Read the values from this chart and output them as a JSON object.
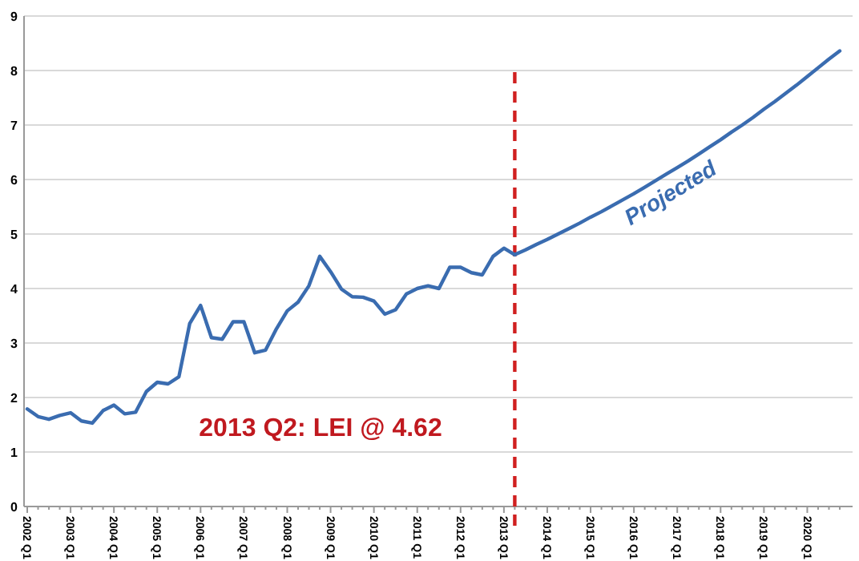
{
  "chart_data": {
    "type": "line",
    "annotations": [
      "2013 Q2: LEI @ 4.62"
    ],
    "categories": [
      "2002 Q1",
      null,
      null,
      null,
      "2003 Q1",
      null,
      null,
      null,
      "2004 Q1",
      null,
      null,
      null,
      "2005 Q1",
      null,
      null,
      null,
      "2006 Q1",
      null,
      null,
      null,
      "2007 Q1",
      null,
      null,
      null,
      "2008 Q1",
      null,
      null,
      null,
      "2009 Q1",
      null,
      null,
      null,
      "2010 Q1",
      null,
      null,
      null,
      "2011 Q1",
      null,
      null,
      null,
      "2012 Q1",
      null,
      null,
      null,
      "2013 Q1",
      null,
      null,
      null,
      "2014 Q1",
      null,
      null,
      null,
      "2015 Q1",
      null,
      null,
      null,
      "2016 Q1",
      null,
      null,
      null,
      "2017 Q1",
      null,
      null,
      null,
      "2018 Q1",
      null,
      null,
      null,
      "2019 Q1",
      null,
      null,
      null,
      "2020 Q1",
      null,
      null,
      null
    ],
    "ylim": [
      0,
      9
    ],
    "yticks": [
      0,
      1,
      2,
      3,
      4,
      5,
      6,
      7,
      8,
      9
    ],
    "grid": "y",
    "legend": false,
    "marker": "none",
    "line_style": "solid",
    "series": [
      {
        "color": "#3a6cb0",
        "values": [
          1.79,
          1.65,
          1.6,
          1.67,
          1.72,
          1.57,
          1.53,
          1.76,
          1.86,
          1.7,
          1.73,
          2.11,
          2.28,
          2.25,
          2.38,
          3.36,
          3.69,
          3.1,
          3.07,
          3.39,
          3.39,
          2.82,
          2.87,
          3.26,
          3.59,
          3.75,
          4.05,
          4.59,
          4.31,
          3.99,
          3.85,
          3.84,
          3.77,
          3.53,
          3.61,
          3.9,
          4.0,
          4.05,
          4.0,
          4.39,
          4.39,
          4.29,
          4.25,
          4.59,
          4.74,
          4.62,
          null,
          null,
          null,
          null,
          null,
          null,
          null,
          null,
          null,
          null,
          null,
          null,
          null,
          null,
          null,
          null,
          null,
          null,
          null,
          null,
          null,
          null,
          null,
          null,
          null,
          null,
          null,
          null,
          null,
          null
        ]
      },
      {
        "name": "Projected",
        "color": "#3a6cb0",
        "values": [
          null,
          null,
          null,
          null,
          null,
          null,
          null,
          null,
          null,
          null,
          null,
          null,
          null,
          null,
          null,
          null,
          null,
          null,
          null,
          null,
          null,
          null,
          null,
          null,
          null,
          null,
          null,
          null,
          null,
          null,
          null,
          null,
          null,
          null,
          null,
          null,
          null,
          null,
          null,
          null,
          null,
          null,
          null,
          null,
          null,
          4.62,
          4.71,
          4.81,
          4.9,
          5.0,
          5.1,
          5.2,
          5.31,
          5.41,
          5.52,
          5.63,
          5.74,
          5.86,
          5.98,
          6.1,
          6.22,
          6.34,
          6.47,
          6.6,
          6.73,
          6.87,
          7.0,
          7.14,
          7.29,
          7.43,
          7.58,
          7.73,
          7.89,
          8.05,
          8.21,
          8.36
        ]
      }
    ]
  }
}
